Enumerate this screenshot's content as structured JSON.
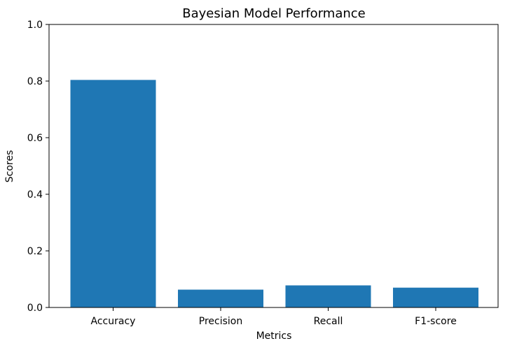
{
  "chart_data": {
    "type": "bar",
    "title": "Bayesian Model Performance",
    "xlabel": "Metrics",
    "ylabel": "Scores",
    "categories": [
      "Accuracy",
      "Precision",
      "Recall",
      "F1-score"
    ],
    "values": [
      0.804,
      0.063,
      0.078,
      0.07
    ],
    "ylim": [
      0,
      1.0
    ],
    "yticks": [
      "0.0",
      "0.2",
      "0.4",
      "0.6",
      "0.8",
      "1.0"
    ],
    "bar_color": "#1f77b4",
    "grid": false,
    "legend": "none"
  }
}
